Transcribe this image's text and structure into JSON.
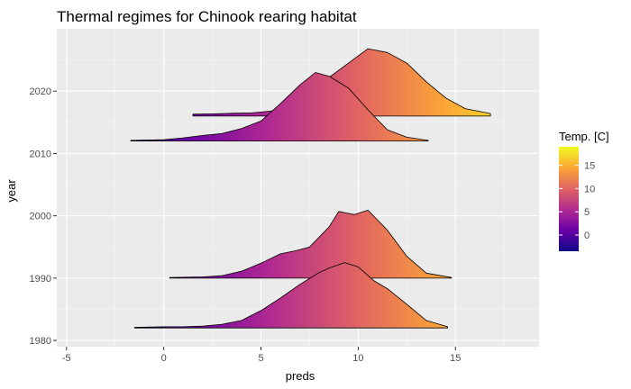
{
  "chart_data": {
    "type": "ridgeline",
    "title": "Thermal regimes for Chinook rearing habitat",
    "xlabel": "preds",
    "ylabel": "year",
    "xlim": [
      -5.5,
      19.3
    ],
    "ylim": [
      1979,
      2030
    ],
    "x_ticks": [
      -5,
      0,
      5,
      10,
      15
    ],
    "x_tick_labels": [
      "-5",
      "0",
      "5",
      "10",
      "15"
    ],
    "y_ticks": [
      1980,
      1990,
      2000,
      2010,
      2020
    ],
    "y_tick_labels": [
      "1980",
      "1990",
      "2000",
      "2010",
      "2020"
    ],
    "grid": true,
    "legend": {
      "title": "Temp. [C]",
      "position": "right",
      "range": [
        -3.5,
        19
      ],
      "ticks": [
        0,
        5,
        10,
        15
      ],
      "tick_labels": [
        "0",
        "5",
        "10",
        "15"
      ],
      "colors": [
        "#0d0887",
        "#6a00a8",
        "#b12a90",
        "#e16462",
        "#fca636",
        "#f0f921"
      ]
    },
    "series": [
      {
        "year": 2016,
        "x": [
          1.5,
          2.5,
          3.5,
          4.5,
          5.5,
          6.5,
          7.5,
          8.5,
          9.5,
          10.5,
          11.5,
          12.5,
          13.5,
          14.5,
          15.5,
          16.8
        ],
        "density_years": [
          0.3,
          0.35,
          0.45,
          0.5,
          0.8,
          1.6,
          3.6,
          6.2,
          8.5,
          10.8,
          10.2,
          8.5,
          5.5,
          2.9,
          1.2,
          0.4
        ]
      },
      {
        "year": 2012,
        "x": [
          -1.7,
          0,
          1,
          2,
          3,
          4,
          5,
          6,
          7,
          7.8,
          8.5,
          9.5,
          10.5,
          11.5,
          12.5,
          13.6
        ],
        "density_years": [
          0.1,
          0.2,
          0.5,
          0.9,
          1.2,
          2,
          3.2,
          6,
          9,
          11,
          10.4,
          8.5,
          5,
          1.8,
          0.6,
          0.1
        ]
      },
      {
        "year": 1990,
        "x": [
          0.3,
          2,
          3,
          4,
          5,
          6,
          6.8,
          7.5,
          8.5,
          9,
          9.8,
          10.5,
          11.5,
          12.5,
          13.5,
          14.8
        ],
        "density_years": [
          0.1,
          0.2,
          0.4,
          1.1,
          2.4,
          3.9,
          4.4,
          5,
          8.2,
          10.7,
          10.2,
          10.9,
          7.7,
          3.5,
          0.8,
          0.1
        ]
      },
      {
        "year": 1982,
        "x": [
          -1.5,
          0,
          1,
          2,
          3,
          4,
          5,
          6,
          7,
          8,
          8.5,
          9.3,
          10,
          10.8,
          11.5,
          12.5,
          13.5,
          14.6
        ],
        "density_years": [
          0.1,
          0.2,
          0.2,
          0.3,
          0.6,
          1.2,
          2.8,
          4.8,
          7,
          8.9,
          9.6,
          10.5,
          9.8,
          7.6,
          6.3,
          3.8,
          1.2,
          0.2
        ]
      }
    ]
  }
}
